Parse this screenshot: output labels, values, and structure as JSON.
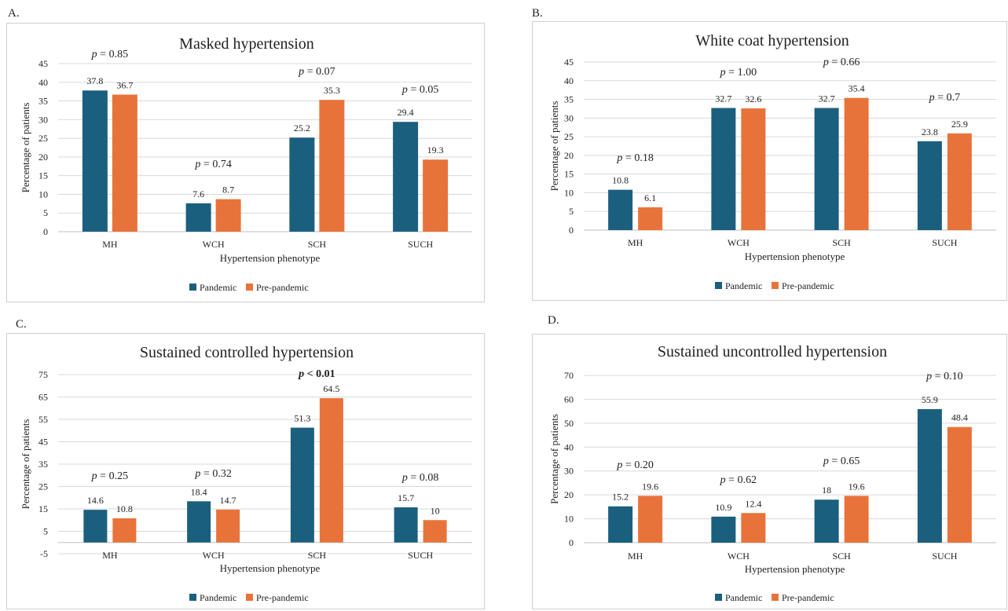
{
  "panels": [
    {
      "letter": "A."
    },
    {
      "letter": "B."
    },
    {
      "letter": "C."
    },
    {
      "letter": "D."
    }
  ],
  "chart_data": [
    {
      "type": "bar",
      "title": "Masked hypertension",
      "xlabel": "Hypertension phenotype",
      "ylabel": "Percentage of patients",
      "categories": [
        "MH",
        "WCH",
        "SCH",
        "SUCH"
      ],
      "series": [
        {
          "name": "Pandemic",
          "color": "#1b5f7f",
          "values": [
            37.8,
            7.6,
            25.2,
            29.4
          ],
          "labels": [
            "37.8",
            "7.6",
            "25.2",
            "29.4"
          ]
        },
        {
          "name": "Pre-pandemic",
          "color": "#e8733a",
          "values": [
            36.7,
            8.7,
            35.3,
            19.3
          ],
          "labels": [
            "36.7",
            "8.7",
            "35.3",
            "19.3"
          ]
        }
      ],
      "ylim": [
        0,
        45
      ],
      "yticks": [
        "0",
        "5",
        "10",
        "15",
        "20",
        "25",
        "30",
        "35",
        "40",
        "45"
      ],
      "pvalues": [
        {
          "italic": "p",
          "rest": " = 0.85",
          "bold": false
        },
        {
          "italic": "p",
          "rest": " = 0.74",
          "bold": false
        },
        {
          "italic": "p",
          "rest": " = 0.07",
          "bold": false
        },
        {
          "italic": "p",
          "rest": " = 0.05",
          "bold": false
        }
      ],
      "grid": true,
      "legend": "bottom"
    },
    {
      "type": "bar",
      "title": "White coat hypertension",
      "xlabel": "Hypertension phenotype",
      "ylabel": "Percentage of patients",
      "categories": [
        "MH",
        "WCH",
        "SCH",
        "SUCH"
      ],
      "series": [
        {
          "name": "Pandemic",
          "color": "#1b5f7f",
          "values": [
            10.8,
            32.7,
            32.7,
            23.8
          ],
          "labels": [
            "10.8",
            "32.7",
            "32.7",
            "23.8"
          ]
        },
        {
          "name": "Pre-pandemic",
          "color": "#e8733a",
          "values": [
            6.1,
            32.6,
            35.4,
            25.9
          ],
          "labels": [
            "6.1",
            "32.6",
            "35.4",
            "25.9"
          ]
        }
      ],
      "ylim": [
        0,
        45
      ],
      "yticks": [
        "0",
        "5",
        "10",
        "15",
        "20",
        "25",
        "30",
        "35",
        "40",
        "45"
      ],
      "pvalues": [
        {
          "italic": "p",
          "rest": " = 0.18",
          "bold": false
        },
        {
          "italic": "p",
          "rest": " = 1.00",
          "bold": false
        },
        {
          "italic": "p",
          "rest": " = 0.66",
          "bold": false
        },
        {
          "italic": "p",
          "rest": " = 0.7",
          "bold": false
        }
      ],
      "grid": true,
      "legend": "bottom"
    },
    {
      "type": "bar",
      "title": "Sustained controlled hypertension",
      "xlabel": "Hypertension phenotype",
      "ylabel": "Percentage of patients",
      "categories": [
        "MH",
        "WCH",
        "SCH",
        "SUCH"
      ],
      "series": [
        {
          "name": "Pandemic",
          "color": "#1b5f7f",
          "values": [
            14.6,
            18.4,
            51.3,
            15.7
          ],
          "labels": [
            "14.6",
            "18.4",
            "51.3",
            "15.7"
          ]
        },
        {
          "name": "Pre-pandemic",
          "color": "#e8733a",
          "values": [
            10.8,
            14.7,
            64.5,
            10
          ],
          "labels": [
            "10.8",
            "14.7",
            "64.5",
            "10"
          ]
        }
      ],
      "ylim": [
        -5,
        75
      ],
      "yticks": [
        "-5",
        "5",
        "15",
        "25",
        "35",
        "45",
        "55",
        "65",
        "75"
      ],
      "pvalues": [
        {
          "italic": "p",
          "rest": " = 0.25",
          "bold": false
        },
        {
          "italic": "p",
          "rest": " = 0.32",
          "bold": false
        },
        {
          "italic": "p",
          "rest": " < 0.01",
          "bold": true
        },
        {
          "italic": "p",
          "rest": " = 0.08",
          "bold": false
        }
      ],
      "grid": true,
      "legend": "bottom"
    },
    {
      "type": "bar",
      "title": "Sustained uncontrolled hypertension",
      "xlabel": "Hypertension phenotype",
      "ylabel": "Percentage of patients",
      "categories": [
        "MH",
        "WCH",
        "SCH",
        "SUCH"
      ],
      "series": [
        {
          "name": "Pandemic",
          "color": "#1b5f7f",
          "values": [
            15.2,
            10.9,
            18,
            55.9
          ],
          "labels": [
            "15.2",
            "10.9",
            "18",
            "55.9"
          ]
        },
        {
          "name": "Pre-pandemic",
          "color": "#e8733a",
          "values": [
            19.6,
            12.4,
            19.6,
            48.4
          ],
          "labels": [
            "19.6",
            "12.4",
            "19.6",
            "48.4"
          ]
        }
      ],
      "ylim": [
        0,
        70
      ],
      "yticks": [
        "0",
        "10",
        "20",
        "30",
        "40",
        "50",
        "60",
        "70"
      ],
      "pvalues": [
        {
          "italic": "p",
          "rest": " = 0.20",
          "bold": false
        },
        {
          "italic": "p",
          "rest": " = 0.62",
          "bold": false
        },
        {
          "italic": "p",
          "rest": " = 0.65",
          "bold": false
        },
        {
          "italic": "p",
          "rest": " = 0.10",
          "bold": false
        }
      ],
      "grid": true,
      "legend": "bottom"
    }
  ]
}
